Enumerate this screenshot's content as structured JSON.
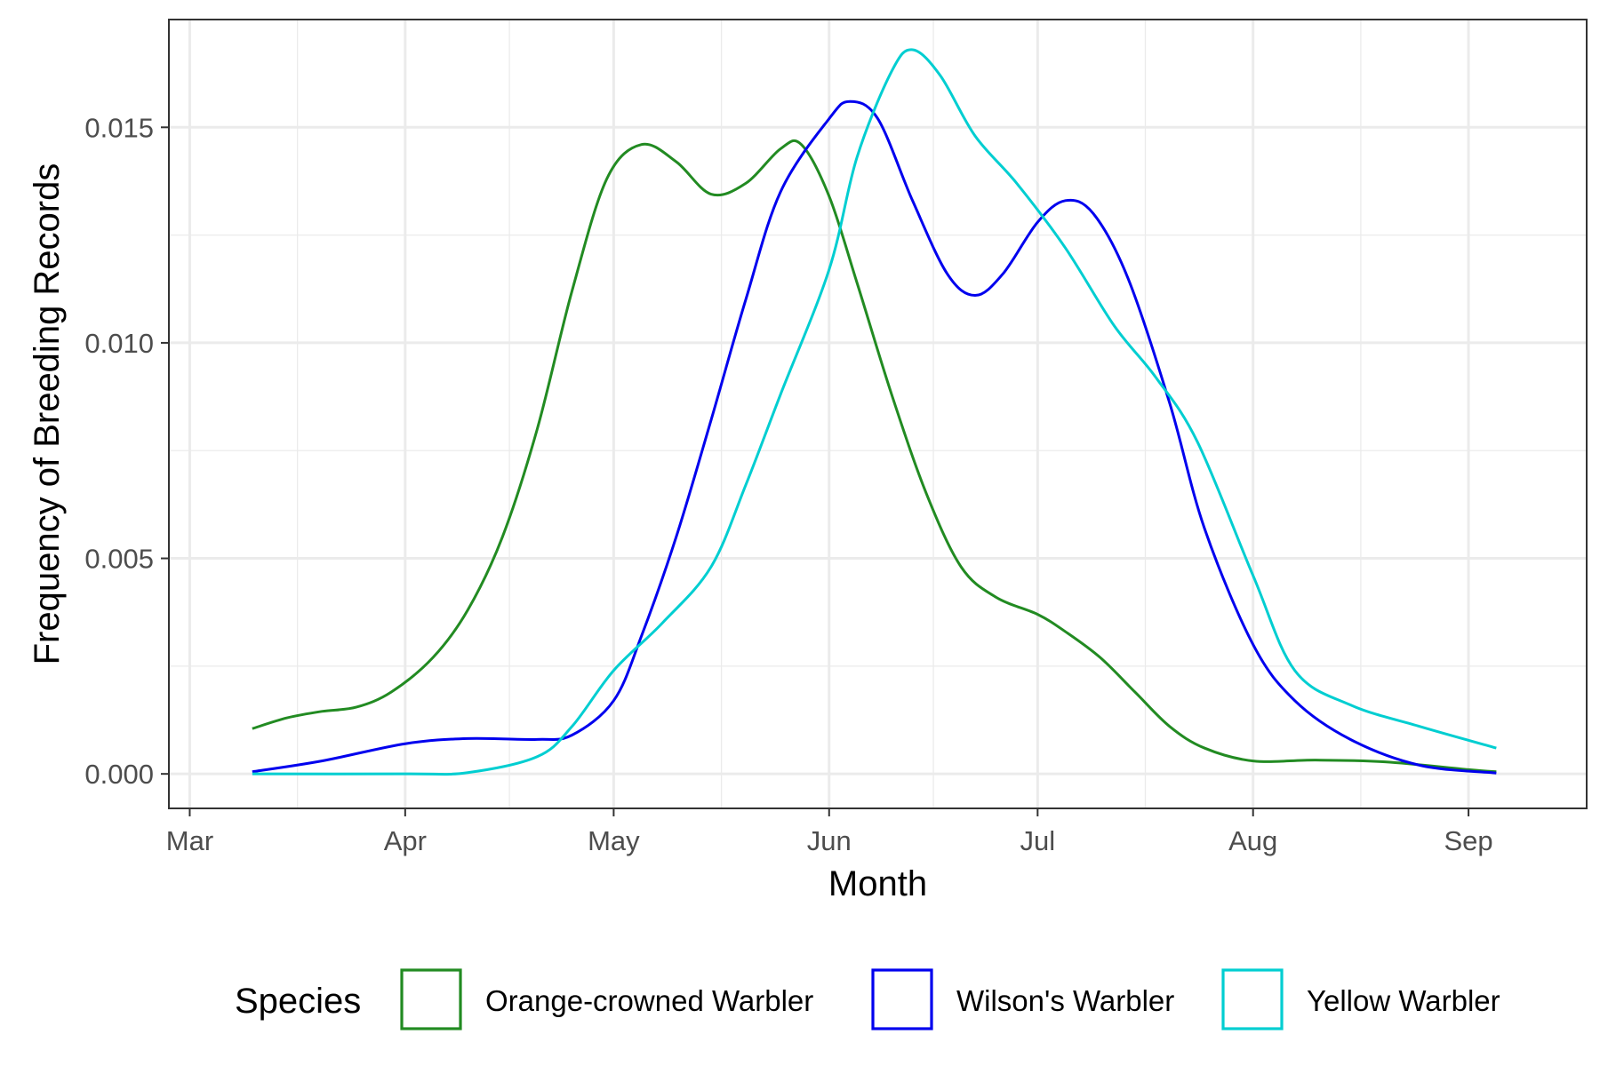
{
  "chart_data": {
    "type": "line",
    "xlabel": "Month",
    "ylabel": "Frequency of Breeding Records",
    "x_ticks": [
      "Mar",
      "Apr",
      "May",
      "Jun",
      "Jul",
      "Aug",
      "Sep"
    ],
    "xlim": [
      "Feb 26",
      "Sep 18"
    ],
    "ylim": [
      -0.0008,
      0.0175
    ],
    "y_ticks": [
      "0.000",
      "0.005",
      "0.010",
      "0.015"
    ],
    "grid": true,
    "legend": {
      "title": "Species",
      "position": "bottom"
    },
    "series": [
      {
        "name": "Orange-crowned Warbler",
        "color": "#228B22",
        "points": [
          [
            "Mar 10",
            0.00105
          ],
          [
            "Mar 15",
            0.0013
          ],
          [
            "Mar 20",
            0.00145
          ],
          [
            "Mar 25",
            0.00155
          ],
          [
            "Mar 30",
            0.0019
          ],
          [
            "Apr 5",
            0.0027
          ],
          [
            "Apr 10",
            0.0038
          ],
          [
            "Apr 15",
            0.0055
          ],
          [
            "Apr 20",
            0.008
          ],
          [
            "Apr 25",
            0.0112
          ],
          [
            "Apr 30",
            0.0138
          ],
          [
            "May 5",
            0.0146
          ],
          [
            "May 10",
            0.0142
          ],
          [
            "May 15",
            0.01345
          ],
          [
            "May 20",
            0.0137
          ],
          [
            "May 25",
            0.0145
          ],
          [
            "May 28",
            0.0146
          ],
          [
            "Jun 1",
            0.0134
          ],
          [
            "Jun 5",
            0.0114
          ],
          [
            "Jun 10",
            0.0088
          ],
          [
            "Jun 15",
            0.0065
          ],
          [
            "Jun 20",
            0.0048
          ],
          [
            "Jun 25",
            0.0041
          ],
          [
            "Jul 1",
            0.0037
          ],
          [
            "Jul 5",
            0.0033
          ],
          [
            "Jul 10",
            0.0027
          ],
          [
            "Jul 15",
            0.0019
          ],
          [
            "Jul 20",
            0.0011
          ],
          [
            "Jul 25",
            0.0006
          ],
          [
            "Aug 1",
            0.0003
          ],
          [
            "Aug 10",
            0.00032
          ],
          [
            "Aug 20",
            0.00028
          ],
          [
            "Sep 1",
            0.0001
          ],
          [
            "Sep 5",
            5e-05
          ]
        ]
      },
      {
        "name": "Wilson's Warbler",
        "color": "#0000EE",
        "points": [
          [
            "Mar 10",
            5e-05
          ],
          [
            "Mar 20",
            0.0003
          ],
          [
            "Apr 1",
            0.0007
          ],
          [
            "Apr 10",
            0.00082
          ],
          [
            "Apr 20",
            0.0008
          ],
          [
            "Apr 25",
            0.0009
          ],
          [
            "May 1",
            0.0017
          ],
          [
            "May 5",
            0.0032
          ],
          [
            "May 10",
            0.0055
          ],
          [
            "May 15",
            0.0082
          ],
          [
            "May 20",
            0.011
          ],
          [
            "May 25",
            0.0135
          ],
          [
            "Jun 1",
            0.0152
          ],
          [
            "Jun 4",
            0.0156
          ],
          [
            "Jun 8",
            0.0152
          ],
          [
            "Jun 13",
            0.0133
          ],
          [
            "Jun 18",
            0.0116
          ],
          [
            "Jun 22",
            0.0111
          ],
          [
            "Jun 26",
            0.0116
          ],
          [
            "Jul 1",
            0.0128
          ],
          [
            "Jul 5",
            0.0133
          ],
          [
            "Jul 9",
            0.013
          ],
          [
            "Jul 14",
            0.0115
          ],
          [
            "Jul 20",
            0.0086
          ],
          [
            "Jul 25",
            0.0057
          ],
          [
            "Aug 1",
            0.003
          ],
          [
            "Aug 7",
            0.0017
          ],
          [
            "Aug 15",
            0.0008
          ],
          [
            "Aug 25",
            0.0002
          ],
          [
            "Sep 5",
            2e-05
          ]
        ]
      },
      {
        "name": "Yellow Warbler",
        "color": "#00CED1",
        "points": [
          [
            "Mar 10",
            0.0
          ],
          [
            "Apr 1",
            0.0
          ],
          [
            "Apr 10",
            3e-05
          ],
          [
            "Apr 20",
            0.0004
          ],
          [
            "Apr 25",
            0.0011
          ],
          [
            "May 1",
            0.0024
          ],
          [
            "May 8",
            0.0035
          ],
          [
            "May 15",
            0.0048
          ],
          [
            "May 20",
            0.0067
          ],
          [
            "May 25",
            0.0088
          ],
          [
            "Jun 1",
            0.0117
          ],
          [
            "Jun 5",
            0.0143
          ],
          [
            "Jun 10",
            0.0163
          ],
          [
            "Jun 13",
            0.0168
          ],
          [
            "Jun 17",
            0.0162
          ],
          [
            "Jun 22",
            0.0148
          ],
          [
            "Jun 28",
            0.0137
          ],
          [
            "Jul 5",
            0.0122
          ],
          [
            "Jul 12",
            0.0104
          ],
          [
            "Jul 18",
            0.0092
          ],
          [
            "Jul 24",
            0.0077
          ],
          [
            "Aug 1",
            0.0046
          ],
          [
            "Aug 7",
            0.0024
          ],
          [
            "Aug 15",
            0.0016
          ],
          [
            "Aug 25",
            0.0011
          ],
          [
            "Sep 5",
            0.0006
          ]
        ]
      }
    ]
  }
}
